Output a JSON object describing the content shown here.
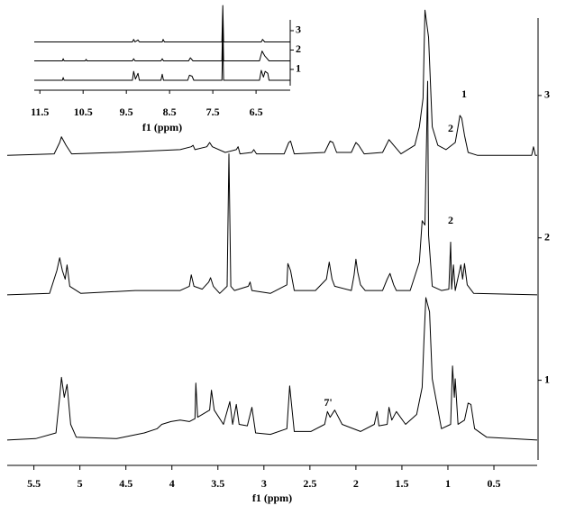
{
  "chart_data": [
    {
      "type": "line",
      "xlabel": "f1 (ppm)",
      "xlim": [
        5.79,
        0.03
      ],
      "xticks": [
        5.5,
        5.0,
        4.5,
        4.0,
        3.5,
        3.0,
        2.5,
        2.0,
        1.5,
        1.0,
        0.5
      ],
      "ylim": [
        0.44,
        3.62
      ],
      "yticks": [
        1,
        2,
        3
      ],
      "annotations": [
        "1",
        "2",
        "2",
        "7'"
      ],
      "series": [
        {
          "color": "#000000",
          "x": [
            5.79,
            5.48,
            5.26,
            5.22,
            5.2,
            5.17,
            5.14,
            5.1,
            5.04,
            4.6,
            4.3,
            4.16,
            4.11,
            4.01,
            3.91,
            3.81,
            3.75,
            3.74,
            3.72,
            3.59,
            3.57,
            3.54,
            3.44,
            3.37,
            3.34,
            3.3,
            3.27,
            3.18,
            3.13,
            3.09,
            2.93,
            2.75,
            2.72,
            2.67,
            2.49,
            2.34,
            2.31,
            2.28,
            2.23,
            2.15,
            1.95,
            1.8,
            1.77,
            1.75,
            1.66,
            1.64,
            1.61,
            1.56,
            1.46,
            1.34,
            1.28,
            1.26,
            1.24,
            1.2,
            1.17,
            1.07,
            0.97,
            0.95,
            0.93,
            0.92,
            0.89,
            0.82,
            0.78,
            0.75,
            0.71,
            0.58,
            0.03
          ],
          "values": [
            0.58,
            0.59,
            0.63,
            0.88,
            1.02,
            0.88,
            0.97,
            0.69,
            0.6,
            0.59,
            0.63,
            0.66,
            0.69,
            0.71,
            0.72,
            0.71,
            0.73,
            0.98,
            0.74,
            0.79,
            0.93,
            0.79,
            0.69,
            0.85,
            0.69,
            0.83,
            0.69,
            0.68,
            0.81,
            0.63,
            0.62,
            0.66,
            0.96,
            0.64,
            0.64,
            0.69,
            0.78,
            0.74,
            0.79,
            0.69,
            0.64,
            0.69,
            0.78,
            0.68,
            0.69,
            0.81,
            0.72,
            0.78,
            0.69,
            0.76,
            0.95,
            1.28,
            1.58,
            1.48,
            1.01,
            0.66,
            0.69,
            1.1,
            0.88,
            1.01,
            0.69,
            0.72,
            0.84,
            0.83,
            0.66,
            0.6,
            0.58
          ]
        },
        {
          "color": "#000000",
          "x": [
            5.79,
            5.33,
            5.25,
            5.22,
            5.19,
            5.16,
            5.14,
            5.11,
            4.99,
            4.4,
            3.91,
            3.81,
            3.79,
            3.76,
            3.67,
            3.6,
            3.58,
            3.55,
            3.48,
            3.4,
            3.38,
            3.36,
            3.32,
            3.17,
            3.15,
            3.13,
            2.93,
            2.75,
            2.74,
            2.71,
            2.67,
            2.44,
            2.32,
            2.29,
            2.26,
            2.23,
            2.05,
            2.02,
            2.0,
            1.98,
            1.95,
            1.9,
            1.71,
            1.66,
            1.63,
            1.59,
            1.56,
            1.41,
            1.31,
            1.28,
            1.25,
            1.22,
            1.21,
            1.17,
            1.07,
            0.99,
            0.97,
            0.96,
            0.94,
            0.92,
            0.86,
            0.84,
            0.82,
            0.79,
            0.72,
            0.03
          ],
          "values": [
            1.6,
            1.61,
            1.77,
            1.86,
            1.77,
            1.71,
            1.81,
            1.66,
            1.61,
            1.63,
            1.63,
            1.66,
            1.74,
            1.66,
            1.64,
            1.69,
            1.72,
            1.66,
            1.61,
            1.66,
            2.59,
            1.66,
            1.63,
            1.66,
            1.69,
            1.63,
            1.61,
            1.67,
            1.82,
            1.77,
            1.63,
            1.63,
            1.71,
            1.83,
            1.71,
            1.66,
            1.63,
            1.74,
            1.85,
            1.76,
            1.67,
            1.63,
            1.63,
            1.71,
            1.75,
            1.67,
            1.63,
            1.63,
            1.83,
            2.12,
            2.09,
            3.1,
            2.02,
            1.66,
            1.63,
            1.64,
            1.97,
            1.64,
            1.81,
            1.63,
            1.81,
            1.71,
            1.82,
            1.67,
            1.61,
            1.6
          ]
        },
        {
          "color": "#000000",
          "x": [
            5.79,
            5.28,
            5.22,
            5.2,
            5.15,
            5.09,
            4.6,
            3.91,
            3.79,
            3.77,
            3.75,
            3.62,
            3.59,
            3.56,
            3.42,
            3.3,
            3.28,
            3.26,
            3.13,
            3.11,
            3.08,
            2.78,
            2.73,
            2.71,
            2.67,
            2.34,
            2.28,
            2.25,
            2.21,
            2.05,
            2.0,
            1.97,
            1.91,
            1.71,
            1.64,
            1.59,
            1.51,
            1.36,
            1.31,
            1.27,
            1.25,
            1.21,
            1.17,
            1.11,
            1.02,
            0.92,
            0.89,
            0.87,
            0.85,
            0.82,
            0.78,
            0.68,
            0.09,
            0.07,
            0.05,
            0.03
          ],
          "values": [
            2.58,
            2.59,
            2.67,
            2.71,
            2.65,
            2.59,
            2.6,
            2.62,
            2.64,
            2.65,
            2.62,
            2.64,
            2.67,
            2.64,
            2.6,
            2.62,
            2.64,
            2.59,
            2.6,
            2.62,
            2.59,
            2.59,
            2.67,
            2.68,
            2.59,
            2.6,
            2.68,
            2.67,
            2.6,
            2.6,
            2.67,
            2.65,
            2.59,
            2.6,
            2.69,
            2.65,
            2.59,
            2.65,
            2.78,
            2.98,
            3.6,
            3.41,
            2.78,
            2.65,
            2.62,
            2.67,
            2.78,
            2.86,
            2.84,
            2.72,
            2.6,
            2.58,
            2.58,
            2.64,
            2.58,
            2.58
          ]
        }
      ]
    },
    {
      "type": "line",
      "xlabel": "f1 (ppm)",
      "xlim": [
        11.63,
        5.71
      ],
      "xticks": [
        11.5,
        10.5,
        9.5,
        8.5,
        7.5,
        6.5
      ],
      "ylim": [
        0.16,
        4.35
      ],
      "yticks": [
        1,
        2,
        3
      ],
      "series": [
        {
          "color": "#000000",
          "x": [
            11.63,
            10.98,
            10.96,
            10.94,
            9.36,
            9.33,
            9.29,
            9.23,
            9.2,
            8.7,
            8.67,
            8.64,
            8.08,
            8.04,
            7.98,
            7.94,
            7.29,
            7.27,
            7.25,
            6.42,
            6.38,
            6.33,
            6.29,
            6.23,
            6.2,
            5.71
          ],
          "values": [
            0.44,
            0.44,
            0.58,
            0.44,
            0.44,
            0.9,
            0.5,
            0.8,
            0.44,
            0.44,
            0.75,
            0.44,
            0.44,
            0.7,
            0.65,
            0.44,
            0.44,
            2.49,
            0.44,
            0.44,
            0.95,
            0.6,
            0.9,
            0.8,
            0.44,
            0.44
          ]
        },
        {
          "color": "#000000",
          "x": [
            11.63,
            10.98,
            10.96,
            10.94,
            10.45,
            10.43,
            10.41,
            9.36,
            9.33,
            9.3,
            8.7,
            8.67,
            8.64,
            8.06,
            8.02,
            7.96,
            7.29,
            7.27,
            7.25,
            6.42,
            6.36,
            6.3,
            6.26,
            6.2,
            5.71
          ],
          "values": [
            1.44,
            1.44,
            1.55,
            1.44,
            1.44,
            1.52,
            1.44,
            1.44,
            1.55,
            1.44,
            1.44,
            1.55,
            1.44,
            1.44,
            1.6,
            1.44,
            1.44,
            3.7,
            1.44,
            1.44,
            1.95,
            1.7,
            1.6,
            1.44,
            1.44
          ]
        },
        {
          "color": "#000000",
          "x": [
            11.63,
            9.36,
            9.33,
            9.3,
            9.23,
            9.2,
            8.67,
            8.65,
            8.62,
            7.29,
            7.27,
            7.25,
            6.38,
            6.35,
            6.3,
            5.71
          ],
          "values": [
            2.42,
            2.42,
            2.55,
            2.42,
            2.52,
            2.42,
            2.42,
            2.55,
            2.42,
            2.42,
            4.3,
            2.42,
            2.42,
            2.55,
            2.42,
            2.42
          ]
        }
      ]
    }
  ]
}
